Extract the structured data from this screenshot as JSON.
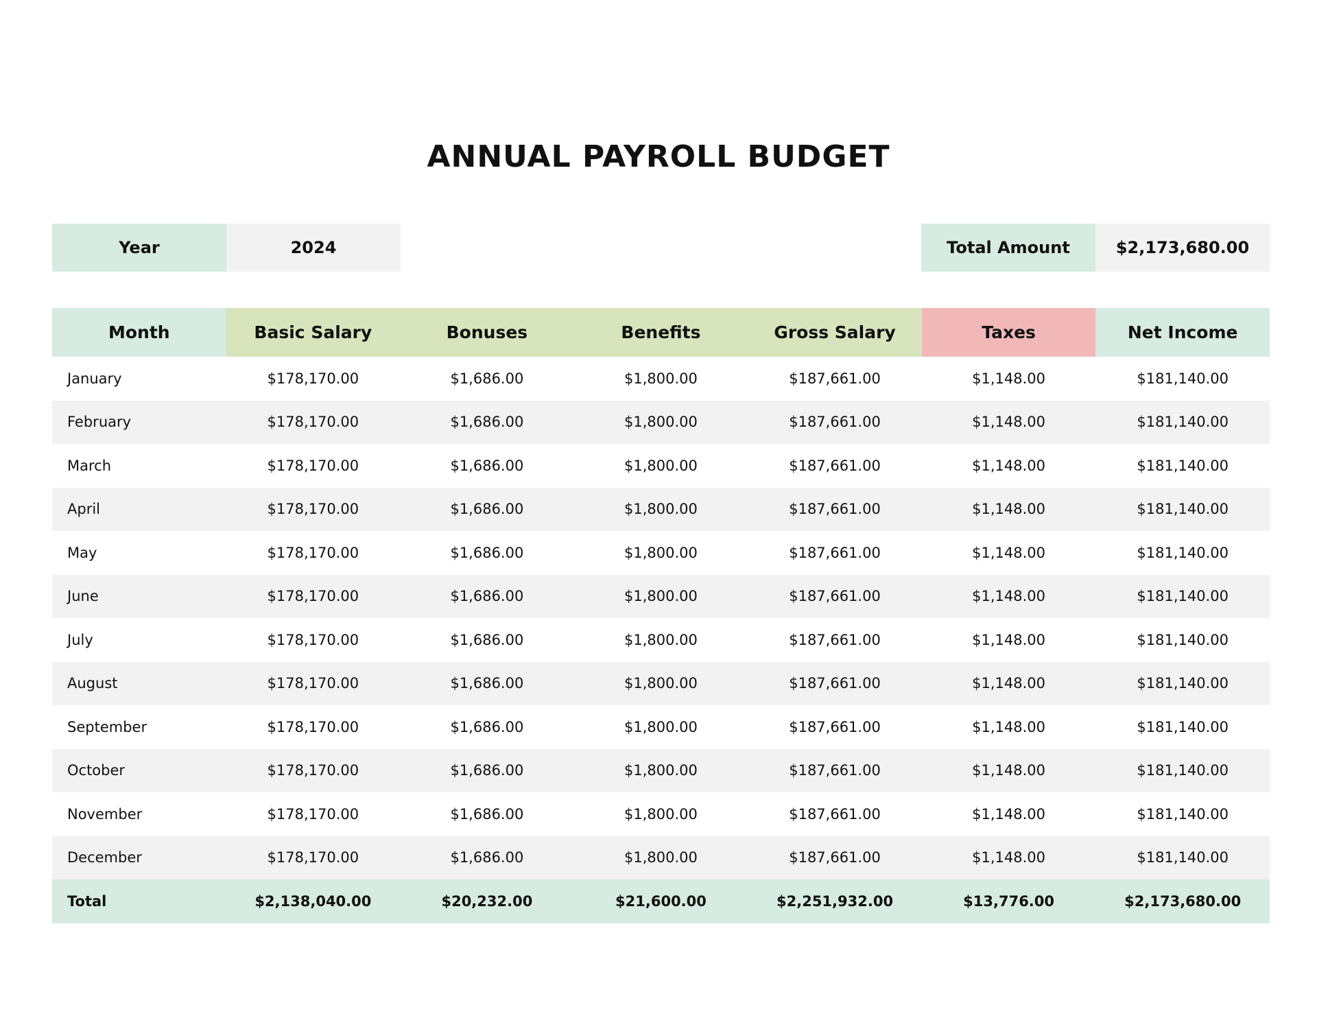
{
  "title": "ANNUAL PAYROLL BUDGET",
  "summary": {
    "year_label": "Year",
    "year": "2024",
    "total_label": "Total Amount",
    "total": "$2,173,680.00"
  },
  "table": {
    "headers": [
      "Month",
      "Basic Salary",
      "Bonuses",
      "Benefits",
      "Gross Salary",
      "Taxes",
      "Net Income"
    ],
    "rows": [
      [
        "January",
        "$178,170.00",
        "$1,686.00",
        "$1,800.00",
        "$187,661.00",
        "$1,148.00",
        "$181,140.00"
      ],
      [
        "February",
        "$178,170.00",
        "$1,686.00",
        "$1,800.00",
        "$187,661.00",
        "$1,148.00",
        "$181,140.00"
      ],
      [
        "March",
        "$178,170.00",
        "$1,686.00",
        "$1,800.00",
        "$187,661.00",
        "$1,148.00",
        "$181,140.00"
      ],
      [
        "April",
        "$178,170.00",
        "$1,686.00",
        "$1,800.00",
        "$187,661.00",
        "$1,148.00",
        "$181,140.00"
      ],
      [
        "May",
        "$178,170.00",
        "$1,686.00",
        "$1,800.00",
        "$187,661.00",
        "$1,148.00",
        "$181,140.00"
      ],
      [
        "June",
        "$178,170.00",
        "$1,686.00",
        "$1,800.00",
        "$187,661.00",
        "$1,148.00",
        "$181,140.00"
      ],
      [
        "July",
        "$178,170.00",
        "$1,686.00",
        "$1,800.00",
        "$187,661.00",
        "$1,148.00",
        "$181,140.00"
      ],
      [
        "August",
        "$178,170.00",
        "$1,686.00",
        "$1,800.00",
        "$187,661.00",
        "$1,148.00",
        "$181,140.00"
      ],
      [
        "September",
        "$178,170.00",
        "$1,686.00",
        "$1,800.00",
        "$187,661.00",
        "$1,148.00",
        "$181,140.00"
      ],
      [
        "October",
        "$178,170.00",
        "$1,686.00",
        "$1,800.00",
        "$187,661.00",
        "$1,148.00",
        "$181,140.00"
      ],
      [
        "November",
        "$178,170.00",
        "$1,686.00",
        "$1,800.00",
        "$187,661.00",
        "$1,148.00",
        "$181,140.00"
      ],
      [
        "December",
        "$178,170.00",
        "$1,686.00",
        "$1,800.00",
        "$187,661.00",
        "$1,148.00",
        "$181,140.00"
      ]
    ],
    "total": [
      "Total",
      "$2,138,040.00",
      "$20,232.00",
      "$21,600.00",
      "$2,251,932.00",
      "$13,776.00",
      "$2,173,680.00"
    ]
  }
}
